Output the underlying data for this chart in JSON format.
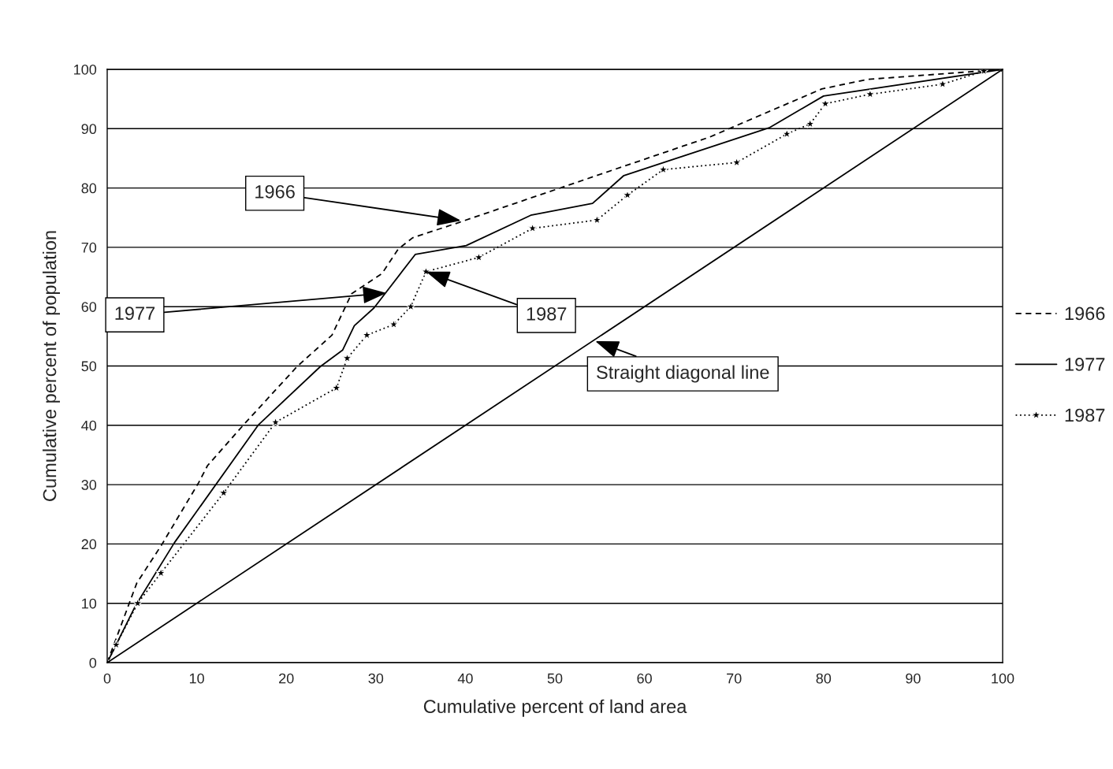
{
  "chart_data": {
    "type": "line",
    "xlabel": "Cumulative percent of land area",
    "ylabel": "Cumulative percent of population",
    "xlim": [
      0,
      100
    ],
    "ylim": [
      0,
      100
    ],
    "xticks": [
      0,
      10,
      20,
      30,
      40,
      50,
      60,
      70,
      80,
      90,
      100
    ],
    "yticks": [
      0,
      10,
      20,
      30,
      40,
      50,
      60,
      70,
      80,
      90,
      100
    ],
    "grid": "y",
    "legend": "right",
    "series": [
      {
        "name": "1966",
        "color": "#000000",
        "line_style": "dashed",
        "marker": "none",
        "x": [
          0,
          3.3,
          6.1,
          10.2,
          11.2,
          15.3,
          21.2,
          25.1,
          27.3,
          30.7,
          32.5,
          34.1,
          39.3,
          67.3,
          79.8,
          84.9,
          100
        ],
        "values": [
          0,
          13.4,
          19.9,
          30.3,
          33.2,
          40.2,
          49.9,
          55.2,
          62.2,
          65.6,
          69.7,
          71.6,
          74.2,
          88.6,
          96.7,
          98.3,
          100
        ]
      },
      {
        "name": "1977",
        "color": "#000000",
        "line_style": "solid",
        "marker": "none",
        "x": [
          0,
          3.2,
          7.5,
          16.9,
          23.8,
          26.3,
          27.6,
          29.8,
          34.4,
          40.1,
          47.3,
          54.2,
          57.7,
          74.0,
          80.0,
          100
        ],
        "values": [
          0,
          9.7,
          20.2,
          40.1,
          49.9,
          52.7,
          56.8,
          59.8,
          68.8,
          70.3,
          75.4,
          77.4,
          82.1,
          90.2,
          95.5,
          100
        ]
      },
      {
        "name": "1987",
        "color": "#000000",
        "line_style": "dotted",
        "marker": "star",
        "x": [
          0,
          1.0,
          3.4,
          6.0,
          13.0,
          18.8,
          25.6,
          26.8,
          29.0,
          32.0,
          33.9,
          35.6,
          41.5,
          47.5,
          54.7,
          58.1,
          62.1,
          70.3,
          75.9,
          78.5,
          80.2,
          85.2,
          93.3,
          97.9,
          100
        ],
        "values": [
          0,
          3.0,
          10.0,
          15.1,
          28.6,
          40.5,
          46.3,
          51.3,
          55.2,
          57.0,
          60.0,
          65.9,
          68.3,
          73.2,
          74.6,
          78.8,
          83.1,
          84.3,
          89.1,
          90.8,
          94.2,
          95.8,
          97.5,
          99.7,
          100
        ]
      },
      {
        "color": "#000000",
        "line_style": "solid",
        "marker": "none",
        "x": [
          0,
          100
        ],
        "values": [
          0,
          100
        ]
      }
    ],
    "annotations": [
      {
        "text": "1966",
        "x": 39.5,
        "y": 74.5
      },
      {
        "text": "1977",
        "x": 31.2,
        "y": 62.3
      },
      {
        "text": "1987",
        "x": 35.6,
        "y": 65.9
      },
      {
        "text": "Straight diagonal line",
        "x": 54.5,
        "y": 54.2
      }
    ]
  }
}
